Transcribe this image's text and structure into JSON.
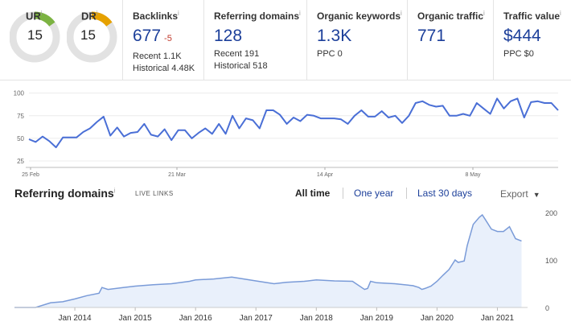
{
  "metrics": {
    "ur": {
      "label": "UR",
      "info": "i",
      "value": "15",
      "level": 0.15,
      "color": "#7cb342"
    },
    "dr": {
      "label": "DR",
      "info": "i",
      "value": "15",
      "level": 0.15,
      "color": "#e6a100"
    },
    "backlinks": {
      "label": "Backlinks",
      "info": "i",
      "value": "677",
      "delta": "-5",
      "recent": "Recent 1.1K",
      "historical": "Historical 4.48K"
    },
    "referring_domains": {
      "label": "Referring domains",
      "info": "i",
      "value": "128",
      "recent": "Recent 191",
      "historical": "Historical 518"
    },
    "organic_keywords": {
      "label": "Organic keywords",
      "info": "i",
      "value": "1.3K",
      "sub": "PPC 0"
    },
    "organic_traffic": {
      "label": "Organic traffic",
      "info": "i",
      "value": "771"
    },
    "traffic_value": {
      "label": "Traffic value",
      "info": "i",
      "value": "$444",
      "sub": "PPC $0"
    }
  },
  "referring_domains_section": {
    "title": "Referring domains",
    "info": "i",
    "live_links": "LIVE LINKS",
    "tabs": [
      "All time",
      "One year",
      "Last 30 days"
    ],
    "export": "Export",
    "caret": "▼"
  },
  "colors": {
    "accent": "#1c3f9a",
    "line": "#4a6fd6",
    "area": "#e9f0fb",
    "area_line": "#7a9bd8"
  },
  "chart_data": [
    {
      "type": "line",
      "title": "",
      "x_ticks": [
        "25 Feb",
        "21 Mar",
        "14 Apr",
        "8 May"
      ],
      "y_ticks": [
        25,
        50,
        75,
        100
      ],
      "ylim": [
        25,
        105
      ],
      "grid": true,
      "series": [
        {
          "values": [
            49,
            46,
            52,
            47,
            40,
            51,
            51,
            51,
            57,
            61,
            68,
            74,
            53,
            62,
            52,
            56,
            57,
            66,
            54,
            52,
            60,
            48,
            59,
            59,
            50,
            56,
            61,
            55,
            66,
            55,
            75,
            61,
            72,
            70,
            61,
            81,
            81,
            76,
            66,
            73,
            69,
            76,
            75,
            72,
            72,
            72,
            71,
            66,
            75,
            81,
            74,
            74,
            80,
            73,
            75,
            67,
            75,
            89,
            91,
            87,
            85,
            86,
            75,
            75,
            77,
            75,
            89,
            83,
            77,
            94,
            83,
            91,
            94,
            73,
            90,
            91,
            89,
            89,
            81
          ]
        }
      ]
    },
    {
      "type": "area",
      "title": "Referring domains",
      "x_ticks": [
        "Jan 2014",
        "Jan 2015",
        "Jan 2016",
        "Jan 2017",
        "Jan 2018",
        "Jan 2019",
        "Jan 2020",
        "Jan 2021"
      ],
      "y_ticks": [
        0,
        100,
        200
      ],
      "ylim": [
        0,
        200
      ],
      "x_start": 2013.0,
      "x_end": 2021.5,
      "series": [
        {
          "x": [
            2013.0,
            2013.35,
            2013.6,
            2013.8,
            2014.0,
            2014.2,
            2014.4,
            2014.45,
            2014.55,
            2014.8,
            2015.0,
            2015.3,
            2015.6,
            2015.9,
            2016.0,
            2016.3,
            2016.6,
            2016.8,
            2017.0,
            2017.3,
            2017.5,
            2017.8,
            2018.0,
            2018.3,
            2018.6,
            2018.8,
            2018.85,
            2018.9,
            2019.0,
            2019.3,
            2019.6,
            2019.7,
            2019.75,
            2019.8,
            2019.9,
            2020.0,
            2020.1,
            2020.2,
            2020.3,
            2020.35,
            2020.45,
            2020.5,
            2020.6,
            2020.7,
            2020.75,
            2020.8,
            2020.9,
            2021.0,
            2021.1,
            2021.2,
            2021.3,
            2021.4
          ],
          "values": [
            0,
            0,
            10,
            12,
            18,
            25,
            30,
            42,
            38,
            42,
            45,
            48,
            50,
            55,
            58,
            60,
            64,
            60,
            56,
            50,
            53,
            55,
            58,
            56,
            55,
            38,
            40,
            55,
            52,
            50,
            46,
            42,
            38,
            40,
            45,
            55,
            68,
            80,
            100,
            95,
            98,
            130,
            175,
            190,
            195,
            185,
            165,
            160,
            160,
            170,
            145,
            140
          ]
        }
      ]
    }
  ]
}
